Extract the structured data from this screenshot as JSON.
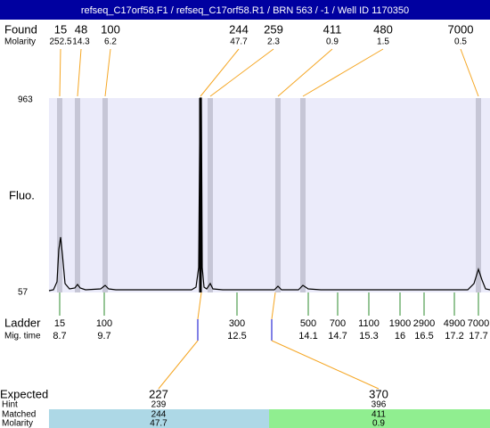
{
  "title": "refseq_C17orf58.F1 / refseq_C17orf58.R1 / BRN 563 / -1 / Well ID 1170350",
  "found": {
    "label": "Found",
    "molarity_label": "Molarity",
    "peaks": [
      {
        "size": 15,
        "molarity": 252.5
      },
      {
        "size": 48,
        "molarity": 14.3
      },
      {
        "size": 100,
        "molarity": 6.2
      },
      {
        "size": 244,
        "molarity": 47.7
      },
      {
        "size": 259,
        "molarity": 2.3
      },
      {
        "size": 411,
        "molarity": 0.9
      },
      {
        "size": 480,
        "molarity": 1.5
      },
      {
        "size": 7000,
        "molarity": 0.5
      }
    ]
  },
  "plot": {
    "y_label": "Fluo.",
    "y_max": 963,
    "y_min": 57
  },
  "ladder": {
    "label": "Ladder",
    "time_label": "Mig. time",
    "items": [
      {
        "size": 15,
        "time": 8.7
      },
      {
        "size": 100,
        "time": 9.7
      },
      {
        "size": 300,
        "time": 12.5
      },
      {
        "size": 500,
        "time": 14.1
      },
      {
        "size": 700,
        "time": 14.7
      },
      {
        "size": 1100,
        "time": 15.3
      },
      {
        "size": 1900,
        "time": 16
      },
      {
        "size": 2900,
        "time": 16.5
      },
      {
        "size": 4900,
        "time": 17.2
      },
      {
        "size": 7000,
        "time": 17.7
      }
    ]
  },
  "expected": {
    "label": "Expected",
    "hint_label": "Hint",
    "matched_label": "Matched",
    "molarity_label": "Molarity",
    "items": [
      {
        "expected": 227,
        "hint": 239,
        "matched": 244,
        "molarity": 47.7
      },
      {
        "expected": 370,
        "hint": 396,
        "matched": 411,
        "molarity": 0.9
      }
    ]
  }
}
